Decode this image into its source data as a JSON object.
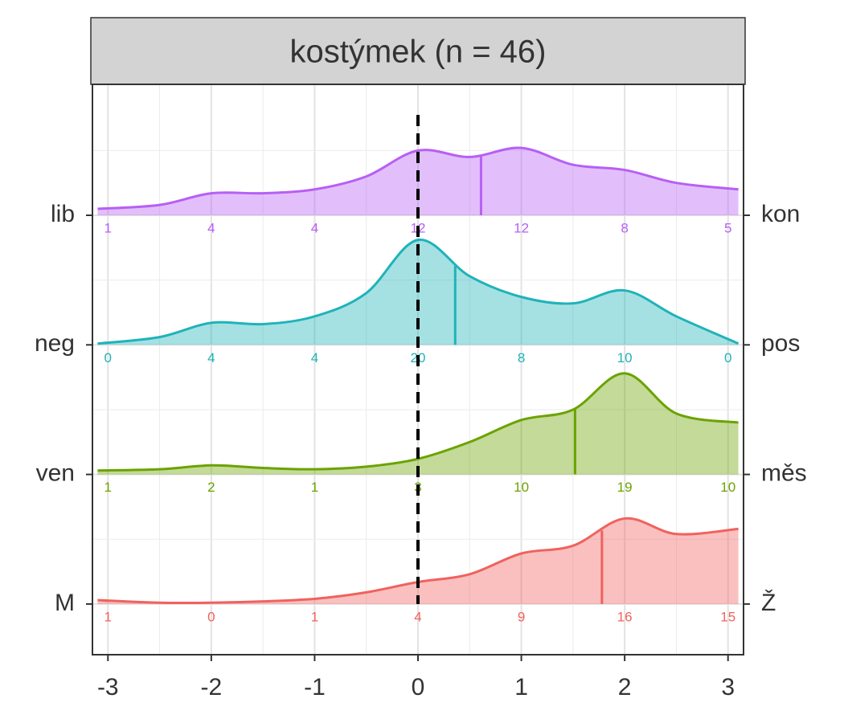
{
  "chart_data": {
    "type": "ridgeline",
    "title": "kostýmek (n = 46)",
    "xlim": [
      -3.15,
      3.15
    ],
    "xticks": [
      -3,
      -2,
      -1,
      0,
      1,
      2,
      3
    ],
    "grid": true,
    "vline": 0,
    "x": [
      -3.1,
      -2.5,
      -2,
      -1.5,
      -1,
      -0.5,
      0,
      0.5,
      1,
      1.5,
      2,
      2.5,
      3.1
    ],
    "series": [
      {
        "name": "lib",
        "name_right": "kon",
        "color": "#b75ff5",
        "mean": 0.61,
        "density": [
          0.05,
          0.08,
          0.17,
          0.17,
          0.2,
          0.3,
          0.5,
          0.45,
          0.52,
          0.39,
          0.35,
          0.25,
          0.2
        ],
        "counts": [
          1,
          4,
          4,
          12,
          12,
          8,
          5
        ]
      },
      {
        "name": "neg",
        "name_right": "pos",
        "color": "#1fb3b8",
        "mean": 0.36,
        "density": [
          0.01,
          0.06,
          0.17,
          0.16,
          0.22,
          0.4,
          0.81,
          0.53,
          0.37,
          0.32,
          0.42,
          0.22,
          0.01
        ],
        "counts": [
          0,
          4,
          4,
          20,
          8,
          10,
          0
        ]
      },
      {
        "name": "ven",
        "name_right": "měs",
        "color": "#6ba300",
        "mean": 1.52,
        "density": [
          0.03,
          0.04,
          0.07,
          0.05,
          0.04,
          0.06,
          0.12,
          0.25,
          0.42,
          0.5,
          0.78,
          0.47,
          0.4
        ],
        "counts": [
          1,
          2,
          1,
          3,
          10,
          19,
          10
        ]
      },
      {
        "name": "M",
        "name_right": "Ž",
        "color": "#f0625e",
        "mean": 1.78,
        "density": [
          0.03,
          0.01,
          0.01,
          0.02,
          0.04,
          0.09,
          0.17,
          0.23,
          0.39,
          0.45,
          0.66,
          0.54,
          0.58
        ],
        "counts": [
          1,
          0,
          1,
          4,
          9,
          16,
          15
        ]
      }
    ]
  }
}
